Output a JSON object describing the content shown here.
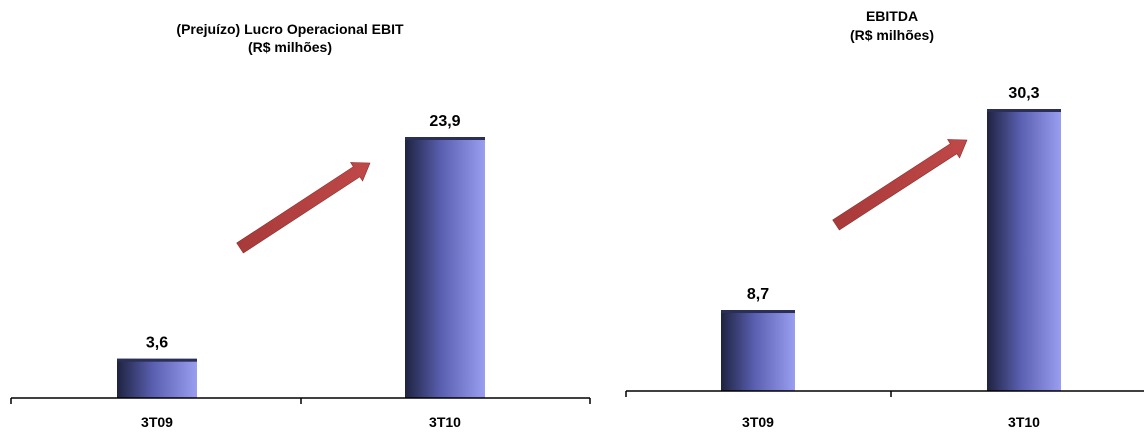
{
  "chart_data": [
    {
      "type": "bar",
      "title": "(Prejuízo) Lucro Operacional EBIT",
      "subtitle": "(R$ milhões)",
      "categories": [
        "3T09",
        "3T10"
      ],
      "values": [
        3.6,
        23.9
      ],
      "value_labels": [
        "3,6",
        "23,9"
      ],
      "ylim": [
        0,
        23.9
      ],
      "grid": false,
      "trend_arrow": "up",
      "colors": {
        "bar_dark": "#1e2340",
        "bar_mid": "#5a5fb0",
        "bar_light": "#9a9ef0",
        "arrow": "#b04040",
        "axis": "#000000"
      }
    },
    {
      "type": "bar",
      "title": "EBITDA",
      "subtitle": "(R$ milhões)",
      "categories": [
        "3T09",
        "3T10"
      ],
      "values": [
        8.7,
        30.3
      ],
      "value_labels": [
        "8,7",
        "30,3"
      ],
      "ylim": [
        0,
        30.3
      ],
      "grid": false,
      "trend_arrow": "up",
      "colors": {
        "bar_dark": "#1e2340",
        "bar_mid": "#5a5fb0",
        "bar_light": "#9a9ef0",
        "arrow": "#b04040",
        "axis": "#000000"
      }
    }
  ]
}
